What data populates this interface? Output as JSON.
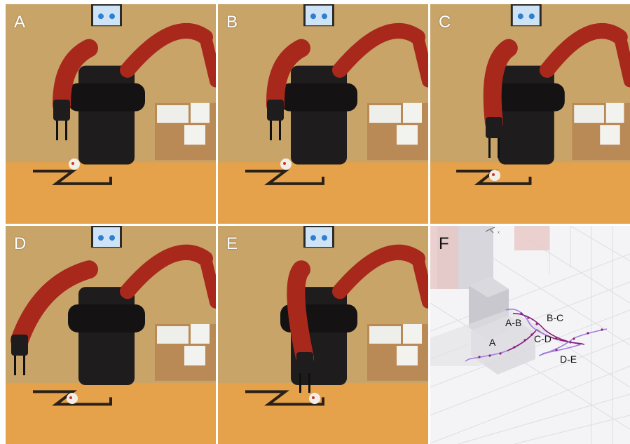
{
  "panels": [
    {
      "label": "A",
      "wrist": [
        88,
        180
      ],
      "ball": [
        106,
        234
      ]
    },
    {
      "label": "B",
      "wrist": [
        393,
        180
      ],
      "ball": [
        408,
        234
      ]
    },
    {
      "label": "C",
      "wrist": [
        705,
        205
      ],
      "ball": [
        706,
        250
      ]
    },
    {
      "label": "D",
      "wrist": [
        28,
        515
      ],
      "ball": [
        103,
        568
      ]
    },
    {
      "label": "E",
      "wrist": [
        435,
        540
      ],
      "ball": [
        449,
        568
      ]
    }
  ],
  "plot": {
    "label": "F",
    "segments": [
      "A",
      "A-B",
      "B-C",
      "C-D",
      "D-E"
    ]
  },
  "colors": {
    "robot_red": "#a8281c",
    "robot_dark": "#1e1c1c",
    "table": "#e5a24a",
    "wall": "#c8a469",
    "trajectory_dark": "#8a1f7a",
    "trajectory_light": "#a27be0"
  }
}
